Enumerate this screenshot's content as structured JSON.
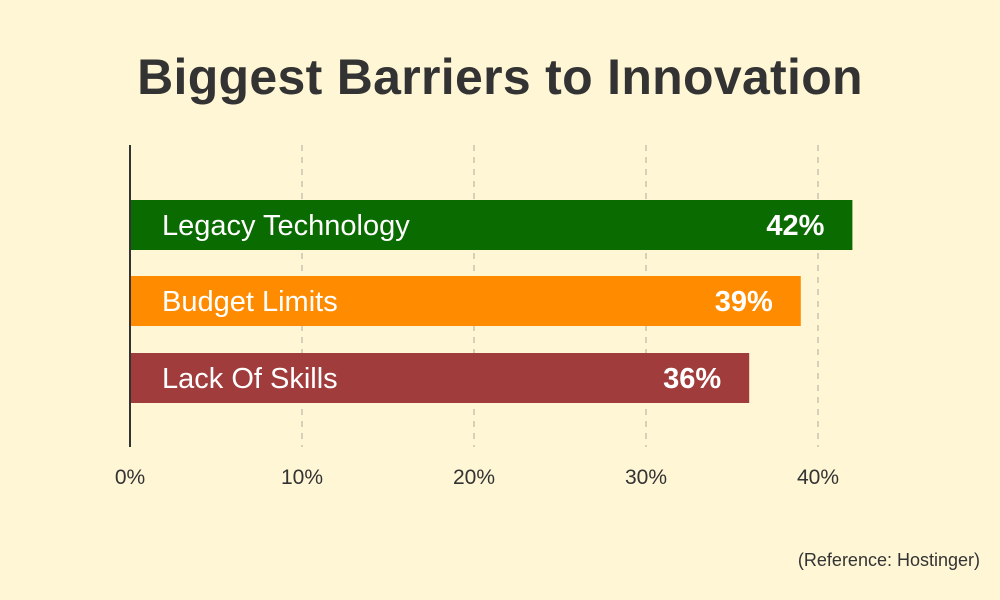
{
  "title": "Biggest Barriers to Innovation",
  "reference": "(Reference: Hostinger)",
  "chart_data": {
    "type": "bar",
    "orientation": "horizontal",
    "title": "Biggest Barriers to Innovation",
    "categories": [
      "Legacy Technology",
      "Budget Limits",
      "Lack Of Skills"
    ],
    "values": [
      42,
      39,
      36
    ],
    "value_labels": [
      "42%",
      "39%",
      "36%"
    ],
    "colors": [
      "#0a6b00",
      "#ff8c00",
      "#a13c3c"
    ],
    "xticks": [
      "0%",
      "10%",
      "20%",
      "30%",
      "40%"
    ],
    "xtick_values": [
      0,
      10,
      20,
      30,
      40
    ],
    "xlim": [
      0,
      40
    ],
    "grid": "vertical dashed",
    "label_color": "#ffffff"
  }
}
